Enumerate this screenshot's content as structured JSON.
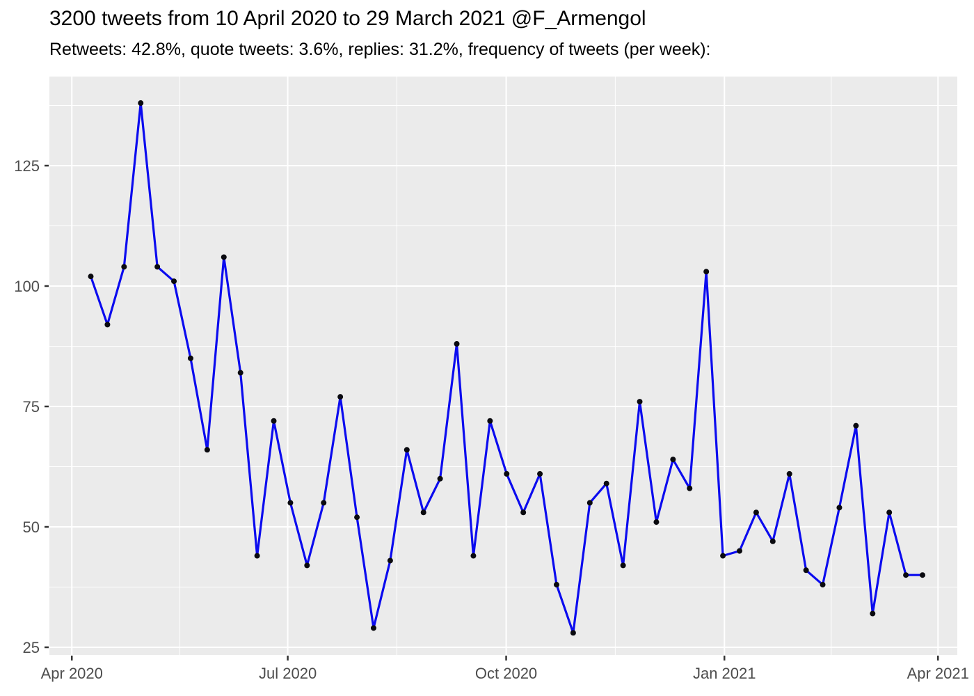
{
  "chart_data": {
    "type": "line",
    "title": "3200 tweets from 10 April 2020 to 29 March 2021 @F_Armengol",
    "subtitle": "Retweets: 42.8%, quote tweets: 3.6%, replies: 31.2%, frequency of tweets (per week):",
    "x_unit": "week-index",
    "series": [
      {
        "name": "tweets-per-week",
        "x": [
          0,
          1,
          2,
          3,
          4,
          5,
          6,
          7,
          8,
          9,
          10,
          11,
          12,
          13,
          14,
          15,
          16,
          17,
          18,
          19,
          20,
          21,
          22,
          23,
          24,
          25,
          26,
          27,
          28,
          29,
          30,
          31,
          32,
          33,
          34,
          35,
          36,
          37,
          38,
          39,
          40,
          41,
          42,
          43,
          44,
          45,
          46,
          47,
          48,
          49,
          50
        ],
        "values": [
          102,
          92,
          104,
          138,
          104,
          101,
          85,
          66,
          106,
          82,
          44,
          72,
          55,
          42,
          55,
          77,
          52,
          29,
          43,
          66,
          53,
          60,
          88,
          44,
          72,
          61,
          53,
          61,
          38,
          28,
          55,
          59,
          42,
          76,
          51,
          64,
          58,
          103,
          44,
          45,
          53,
          47,
          61,
          41,
          38,
          54,
          71,
          32,
          53,
          40,
          40
        ]
      }
    ],
    "total_tweets": "3200",
    "x_ticks": [
      {
        "label": "Apr 2020",
        "week": -1.14
      },
      {
        "label": "Jul 2020",
        "week": 11.84
      },
      {
        "label": "Oct 2020",
        "week": 24.97
      },
      {
        "label": "Jan 2021",
        "week": 38.09
      },
      {
        "label": "Apr 2021",
        "week": 50.93
      }
    ],
    "x_minor_ticks_weeks": [
      5.35,
      18.4,
      31.53,
      44.51
    ],
    "y_ticks": [
      25,
      50,
      75,
      100,
      125
    ],
    "y_minor_ticks": [
      37.5,
      62.5,
      87.5,
      112.5,
      137.5
    ],
    "xlim_weeks": [
      -2.49,
      52.09
    ],
    "ylim": [
      23.4,
      143.5
    ],
    "grid": "on",
    "legend": "none",
    "colors": {
      "line": "#0B0BEF",
      "point": "#0A0A0F",
      "panel_background": "#EBEBEB",
      "gridline": "#FFFFFF",
      "axis_text": "#4D4D4D",
      "tick_mark": "#333333",
      "title_text": "#000000"
    }
  }
}
